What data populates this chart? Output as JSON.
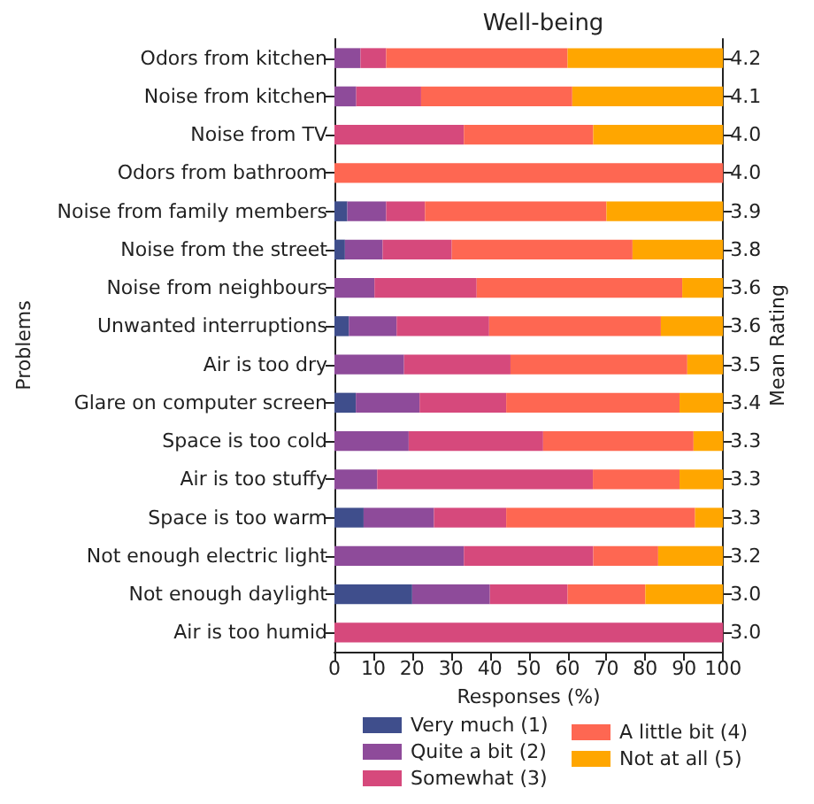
{
  "chart_data": {
    "type": "bar",
    "orientation": "horizontal",
    "stacked": true,
    "title": "Well-being",
    "xlabel": "Responses (%)",
    "ylabel": "Problems",
    "y2label": "Mean Rating",
    "categories": [
      "Odors from kitchen",
      "Noise from kitchen",
      "Noise from TV",
      "Odors from bathroom",
      "Noise from family members",
      "Noise from the street",
      "Noise from neighbours",
      "Unwanted interruptions",
      "Air is too dry",
      "Glare on computer screen",
      "Space is too cold",
      "Air is too stuffy",
      "Space is too warm",
      "Not enough electric light",
      "Not enough daylight",
      "Air is too humid"
    ],
    "y2_categories": [
      "4.2",
      "4.1",
      "4.0",
      "4.0",
      "3.9",
      "3.8",
      "3.6",
      "3.6",
      "3.5",
      "3.4",
      "3.3",
      "3.3",
      "3.3",
      "3.2",
      "3.0",
      "3.0"
    ],
    "series": [
      {
        "name": "Very much (1)",
        "color": "#3f4e8c",
        "values": [
          0,
          0,
          0,
          0,
          3.3,
          2.7,
          0,
          3.7,
          0,
          5.5,
          0,
          0,
          7.5,
          0,
          20,
          0
        ]
      },
      {
        "name": "Quite a bit (2)",
        "color": "#8e4b9a",
        "values": [
          6.7,
          5.6,
          0,
          0,
          10,
          9.7,
          10.3,
          12.3,
          17.9,
          16.4,
          19.1,
          11,
          18.1,
          33.3,
          20,
          0
        ]
      },
      {
        "name": "Somewhat (3)",
        "color": "#d6497c",
        "values": [
          6.6,
          16.7,
          33.3,
          0,
          10,
          17.8,
          26.3,
          23.8,
          27.4,
          22.3,
          34.6,
          55.5,
          18.6,
          33.3,
          20,
          100
        ]
      },
      {
        "name": "A little bit (4)",
        "color": "#fe6752",
        "values": [
          46.7,
          38.9,
          33.3,
          100,
          46.7,
          46.5,
          52.9,
          44.2,
          45.5,
          44.6,
          38.7,
          22.3,
          48.6,
          16.7,
          20,
          0
        ]
      },
      {
        "name": "Not at all (5)",
        "color": "#ffa600",
        "values": [
          40,
          38.8,
          33.4,
          0,
          30,
          23.3,
          10.5,
          16,
          9.2,
          11.2,
          7.6,
          11.2,
          7.2,
          16.7,
          20,
          0
        ]
      }
    ],
    "xlim": [
      0,
      100
    ],
    "xticks": [
      0,
      10,
      20,
      30,
      40,
      50,
      60,
      70,
      80,
      90,
      100
    ],
    "grid": false,
    "legend": "bottom"
  }
}
